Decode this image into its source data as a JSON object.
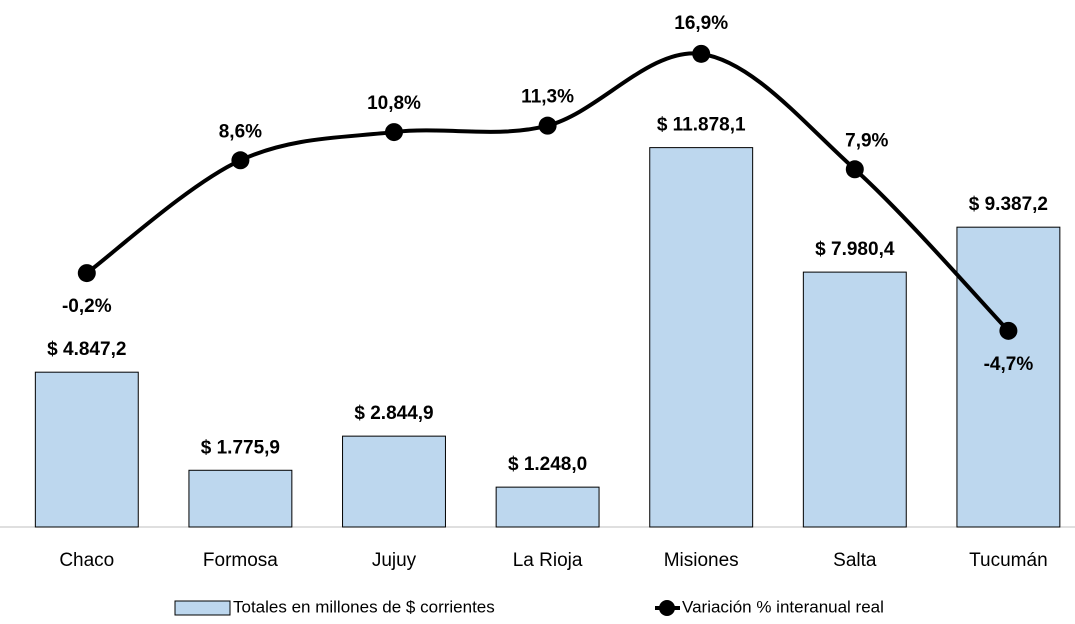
{
  "chart_data": {
    "type": "bar",
    "categories": [
      "Chaco",
      "Formosa",
      "Jujuy",
      "La Rioja",
      "Misiones",
      "Salta",
      "Tucumán"
    ],
    "series": [
      {
        "name": "Totales en millones de $ corrientes",
        "type": "bar",
        "color": "#bdd7ee",
        "values": [
          4847.2,
          1775.9,
          2844.9,
          1248.0,
          11878.1,
          7980.4,
          9387.2
        ],
        "value_labels": [
          "$ 4.847,2",
          "$ 1.775,9",
          "$ 2.844,9",
          "$ 1.248,0",
          "$ 11.878,1",
          "$ 7.980,4",
          "$ 9.387,2"
        ]
      },
      {
        "name": "Variación % interanual real",
        "type": "line",
        "axis": "y2",
        "color": "#000000",
        "values": [
          -0.2,
          8.6,
          10.8,
          11.3,
          16.9,
          7.9,
          -4.7
        ],
        "value_labels": [
          "-0,2%",
          "8,6%",
          "10,8%",
          "11,3%",
          "16,9%",
          "7,9%",
          "-4,7%"
        ]
      }
    ],
    "ylim": [
      0,
      16500
    ],
    "y2lim": [
      -20,
      21.1
    ],
    "legend": "bottom"
  }
}
